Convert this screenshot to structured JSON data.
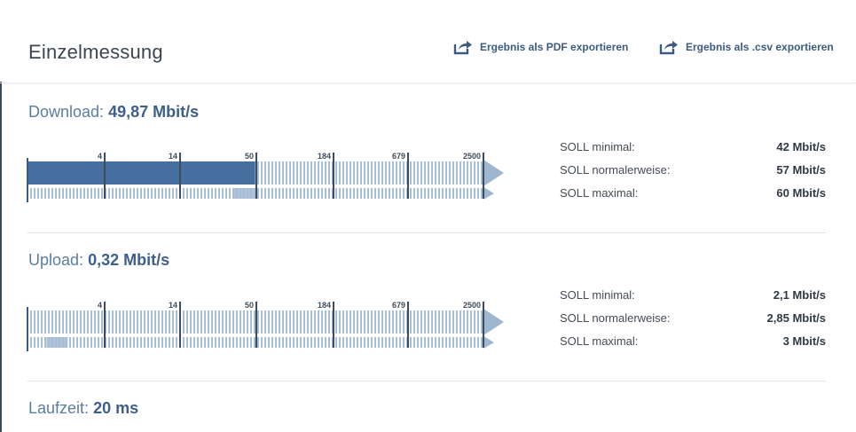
{
  "header": {
    "title": "Einzelmessung",
    "export_pdf_label": "Ergebnis als PDF exportieren",
    "export_csv_label": "Ergebnis als .csv exportieren",
    "export_icon": "share-export-icon"
  },
  "scale": {
    "ticks": [
      "4",
      "14",
      "50",
      "184",
      "679",
      "2500"
    ]
  },
  "download": {
    "label": "Download:",
    "value": "49,87 Mbit/s",
    "bar_fill_fraction": 0.5,
    "marker_fraction": 0.5,
    "soll": [
      {
        "label": "SOLL minimal:",
        "value": "42 Mbit/s"
      },
      {
        "label": "SOLL normalerweise:",
        "value": "57 Mbit/s"
      },
      {
        "label": "SOLL maximal:",
        "value": "60 Mbit/s"
      }
    ]
  },
  "upload": {
    "label": "Upload:",
    "value": "0,32 Mbit/s",
    "bar_fill_fraction": 0.0,
    "marker_fraction": 0.09,
    "soll": [
      {
        "label": "SOLL minimal:",
        "value": "2,1 Mbit/s"
      },
      {
        "label": "SOLL normalerweise:",
        "value": "2,85 Mbit/s"
      },
      {
        "label": "SOLL maximal:",
        "value": "3 Mbit/s"
      }
    ]
  },
  "latency": {
    "label": "Laufzeit:",
    "value": "20 ms"
  },
  "colors": {
    "fill": "#466f9f",
    "stripe": "#a7bdd5",
    "arrow": "#9fb6cf",
    "marker": "#a7bdd5"
  }
}
